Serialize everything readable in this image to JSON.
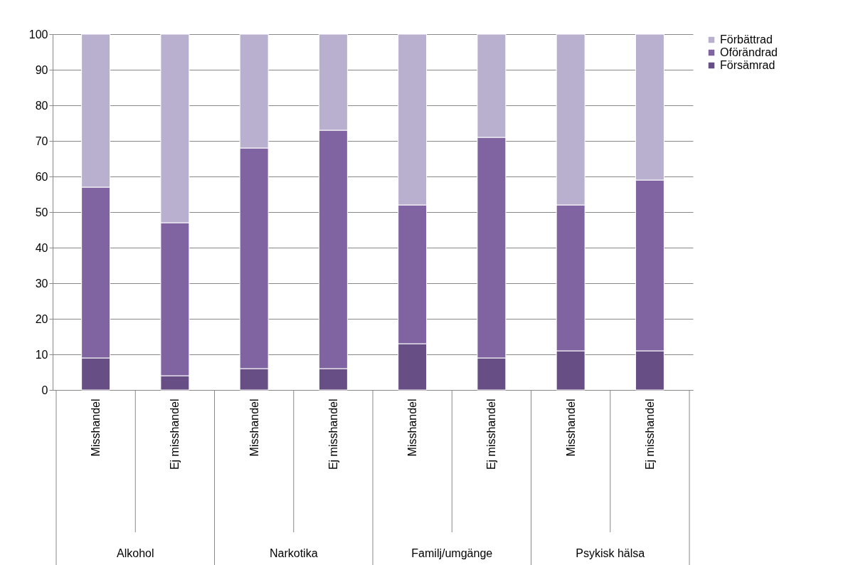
{
  "chart_data": {
    "type": "bar",
    "stacked": true,
    "categories": [
      "Misshandel",
      "Ej misshandel",
      "Misshandel",
      "Ej misshandel",
      "Misshandel",
      "Ej misshandel",
      "Misshandel",
      "Ej misshandel"
    ],
    "annotations": [
      "Alkohol",
      "Narkotika",
      "Familj/umgänge",
      "Psykisk hälsa"
    ],
    "series": [
      {
        "name": "Försämrad",
        "color": "#674e84",
        "values": [
          9,
          4,
          6,
          6,
          13,
          9,
          11,
          11
        ]
      },
      {
        "name": "Oförändrad",
        "color": "#8064a2",
        "values": [
          48,
          43,
          62,
          67,
          39,
          62,
          41,
          48
        ]
      },
      {
        "name": "Förbättrad",
        "color": "#b9afcf",
        "values": [
          43,
          53,
          32,
          27,
          48,
          29,
          48,
          41
        ]
      }
    ],
    "ylim": [
      0,
      100
    ],
    "yticks": [
      0,
      10,
      20,
      30,
      40,
      50,
      60,
      70,
      80,
      90,
      100
    ],
    "grid": "y",
    "legend": "right"
  }
}
